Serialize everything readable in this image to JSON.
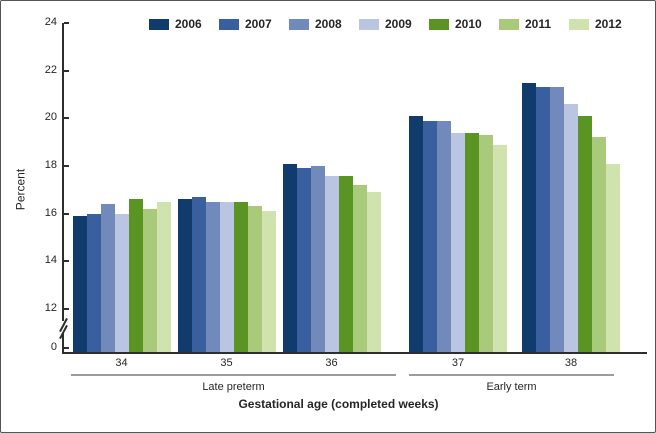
{
  "chart_data": {
    "type": "bar",
    "title": "",
    "xlabel": "Gestational age (completed weeks)",
    "ylabel": "Percent",
    "ylim": [
      0,
      24
    ],
    "y_ticks": [
      24,
      22,
      20,
      18,
      16,
      14,
      12,
      0
    ],
    "axis_break_between": [
      0,
      12
    ],
    "grid": "off",
    "legend_position": "top",
    "categories": [
      "34",
      "35",
      "36",
      "37",
      "38"
    ],
    "category_groups": [
      {
        "label": "Late preterm",
        "categories": [
          "34",
          "35",
          "36"
        ]
      },
      {
        "label": "Early term",
        "categories": [
          "37",
          "38"
        ]
      }
    ],
    "series": [
      {
        "name": "2006",
        "color": "#113a6d",
        "values": [
          15.9,
          16.6,
          18.1,
          20.1,
          21.5
        ]
      },
      {
        "name": "2007",
        "color": "#3a5f9e",
        "values": [
          16.0,
          16.7,
          17.9,
          19.9,
          21.3
        ]
      },
      {
        "name": "2008",
        "color": "#7289bb",
        "values": [
          16.4,
          16.5,
          18.0,
          19.9,
          21.3
        ]
      },
      {
        "name": "2009",
        "color": "#b9c5e1",
        "values": [
          16.0,
          16.5,
          17.6,
          19.4,
          20.6
        ]
      },
      {
        "name": "2010",
        "color": "#5a9423",
        "values": [
          16.6,
          16.5,
          17.6,
          19.4,
          20.1
        ]
      },
      {
        "name": "2011",
        "color": "#a9ca7a",
        "values": [
          16.2,
          16.3,
          17.2,
          19.3,
          19.2
        ]
      },
      {
        "name": "2012",
        "color": "#d0e3af",
        "values": [
          16.5,
          16.1,
          16.9,
          18.9,
          18.1
        ]
      }
    ],
    "colors": {
      "axis": "#2e2e2e",
      "bracket_line": "#9c9c9c",
      "text": "#262626"
    }
  }
}
